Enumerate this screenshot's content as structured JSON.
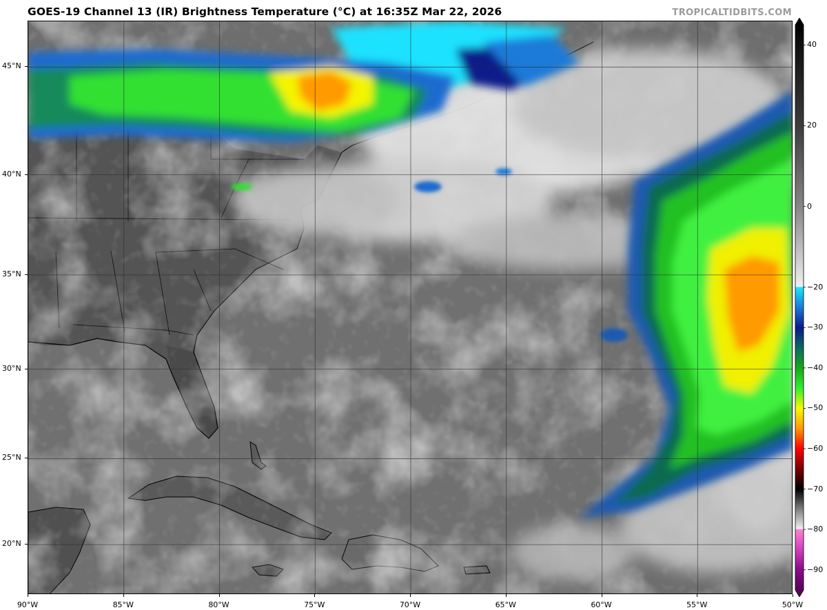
{
  "title": "GOES-19 Channel 13 (IR) Brightness Temperature (°C) at 16:35Z Mar 22, 2026",
  "watermark": "TROPICALTIDBITS.COM",
  "map": {
    "lon_range": [
      -90,
      -50
    ],
    "lat_range": [
      17,
      47
    ],
    "lat_labels": [
      "45°N",
      "40°N",
      "35°N",
      "30°N",
      "25°N",
      "20°N"
    ],
    "lat_values": [
      45,
      40,
      35,
      30,
      25,
      20
    ],
    "lon_labels": [
      "90°W",
      "85°W",
      "80°W",
      "75°W",
      "70°W",
      "65°W",
      "60°W",
      "55°W",
      "50°W"
    ],
    "lon_values": [
      -90,
      -85,
      -80,
      -75,
      -70,
      -65,
      -60,
      -55,
      -50
    ],
    "background_color": "#6e6e6e",
    "land_color": "#555555",
    "gridline_color": "#3a3a3a"
  },
  "colorbar": {
    "labels": [
      "40",
      "20",
      "0",
      "−20",
      "−30",
      "−40",
      "−50",
      "−60",
      "−70",
      "−80",
      "−90"
    ],
    "values": [
      40,
      20,
      0,
      -20,
      -30,
      -40,
      -50,
      -60,
      -70,
      -80,
      -90
    ],
    "range": [
      -95,
      45
    ],
    "stops": [
      {
        "t": 45,
        "color": "#000000"
      },
      {
        "t": 40,
        "color": "#101010"
      },
      {
        "t": 20,
        "color": "#3c3c3c"
      },
      {
        "t": 0,
        "color": "#868686"
      },
      {
        "t": -19.9,
        "color": "#f0f0f0"
      },
      {
        "t": -20,
        "color": "#19e8ff"
      },
      {
        "t": -25,
        "color": "#1a7ad8"
      },
      {
        "t": -30,
        "color": "#0a1a8a"
      },
      {
        "t": -35,
        "color": "#0a6a60"
      },
      {
        "t": -40,
        "color": "#18a818"
      },
      {
        "t": -45,
        "color": "#30f030"
      },
      {
        "t": -50,
        "color": "#f8f800"
      },
      {
        "t": -55,
        "color": "#ff9a00"
      },
      {
        "t": -60,
        "color": "#ff0000"
      },
      {
        "t": -65,
        "color": "#7a0000"
      },
      {
        "t": -70,
        "color": "#000000"
      },
      {
        "t": -75,
        "color": "#808080"
      },
      {
        "t": -79.9,
        "color": "#f0f0f0"
      },
      {
        "t": -80,
        "color": "#ff80d0"
      },
      {
        "t": -85,
        "color": "#d040c0"
      },
      {
        "t": -90,
        "color": "#8a0a8a"
      },
      {
        "t": -95,
        "color": "#5a005a"
      }
    ]
  }
}
